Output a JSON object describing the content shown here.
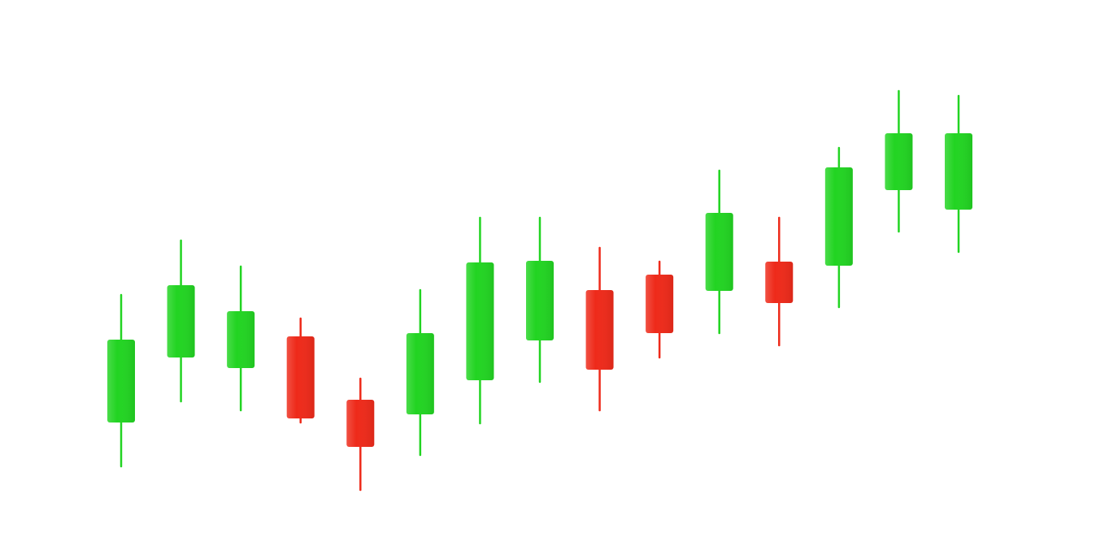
{
  "chart_data": {
    "type": "candlestick",
    "open": [
      13.6,
      21.6,
      20.3,
      24.2,
      16.4,
      14.6,
      18.8,
      23.7,
      29.9,
      31.8,
      29.8,
      33.4,
      32.9,
      42.2,
      39.8
    ],
    "high": [
      29.3,
      36.0,
      32.8,
      26.4,
      19.0,
      29.9,
      38.8,
      38.8,
      35.1,
      33.4,
      44.6,
      38.8,
      47.4,
      54.4,
      53.8
    ],
    "low": [
      8.2,
      16.2,
      15.1,
      13.6,
      5.3,
      9.6,
      13.5,
      18.6,
      15.1,
      21.6,
      24.6,
      23.1,
      27.8,
      37.1,
      34.6
    ],
    "close": [
      23.8,
      30.5,
      27.3,
      14.1,
      10.6,
      24.6,
      33.3,
      33.5,
      20.1,
      24.6,
      39.4,
      28.3,
      45.0,
      49.2,
      49.2
    ],
    "up_color": "#22d422",
    "down_color": "#ee2a1a",
    "ylim": [
      0,
      65.6
    ]
  }
}
